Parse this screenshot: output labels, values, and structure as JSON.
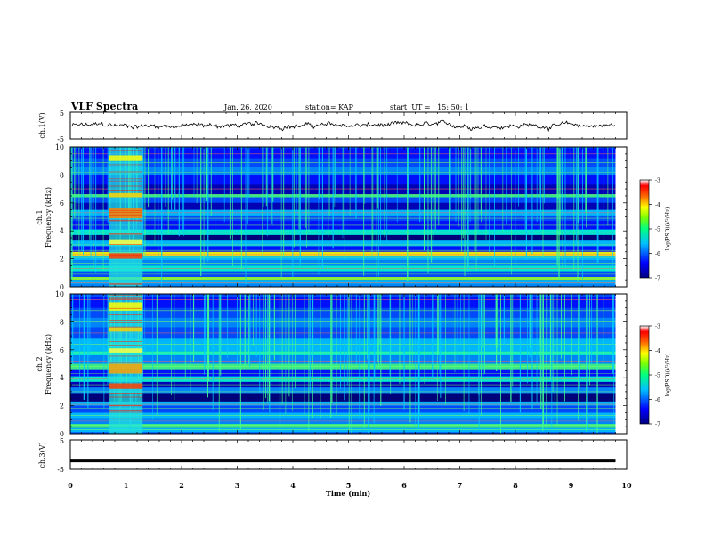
{
  "header": {
    "title": "VLF Spectra",
    "date": "Jan. 26, 2020",
    "station": "station= KAP",
    "start": "start  UT =   15: 50: 1"
  },
  "chart_data": [
    {
      "type": "line",
      "panel": "ch1-waveform",
      "ylabel": "ch.1(V)",
      "ylim": [
        -5,
        5
      ],
      "yticks": [
        "5",
        "-5"
      ],
      "xlim": [
        0,
        10
      ],
      "note_values": "noisy waveform around 0 V, amplitude roughly +/-1 V"
    },
    {
      "type": "heatmap",
      "panel": "ch1-spectrogram",
      "ylabel": "ch.1\nFrequency (kHz)",
      "ylabel_line1": "ch.1",
      "ylabel_line2": "Frequency (kHz)",
      "ylim": [
        0,
        10
      ],
      "yticks": [
        "0",
        "2",
        "4",
        "6",
        "8",
        "10"
      ],
      "xlim": [
        0,
        10
      ],
      "colorbar": {
        "label": "log(PSD)(V²/Hz)",
        "range": [
          -7,
          -3
        ],
        "ticks": [
          "-3",
          "-4",
          "-5",
          "-6",
          "-7"
        ]
      },
      "burst_interval_min": [
        0.7,
        1.3
      ],
      "data_end_min": 9.8
    },
    {
      "type": "heatmap",
      "panel": "ch2-spectrogram",
      "ylabel_line1": "ch.2",
      "ylabel_line2": "Frequency (kHz)",
      "ylim": [
        0,
        10
      ],
      "yticks": [
        "0",
        "2",
        "4",
        "6",
        "8",
        "10"
      ],
      "xlim": [
        0,
        10
      ],
      "colorbar": {
        "label": "log(PSD)(V²/Hz)",
        "range": [
          -7,
          -3
        ],
        "ticks": [
          "-3",
          "-4",
          "-5",
          "-6",
          "-7"
        ]
      },
      "burst_interval_min": [
        0.7,
        1.3
      ],
      "data_end_min": 9.8
    },
    {
      "type": "line",
      "panel": "ch3-waveform",
      "ylabel": "ch.3(V)",
      "ylim": [
        -5,
        5
      ],
      "yticks": [
        "5",
        "-5"
      ],
      "xlim": [
        0,
        10
      ],
      "x": [
        0,
        9.8
      ],
      "y": [
        -2,
        -2
      ]
    }
  ],
  "xaxis": {
    "label": "Time  (min)",
    "ticks": [
      "0",
      "1",
      "2",
      "3",
      "4",
      "5",
      "6",
      "7",
      "8",
      "9",
      "10"
    ]
  },
  "colors": {
    "background": "#ffffff",
    "axes": "#000000",
    "cmap": [
      "#00008b",
      "#0000ff",
      "#00aaff",
      "#00ffcc",
      "#66ff33",
      "#ffff00",
      "#ff8800",
      "#ff0000",
      "#ffffff"
    ]
  }
}
